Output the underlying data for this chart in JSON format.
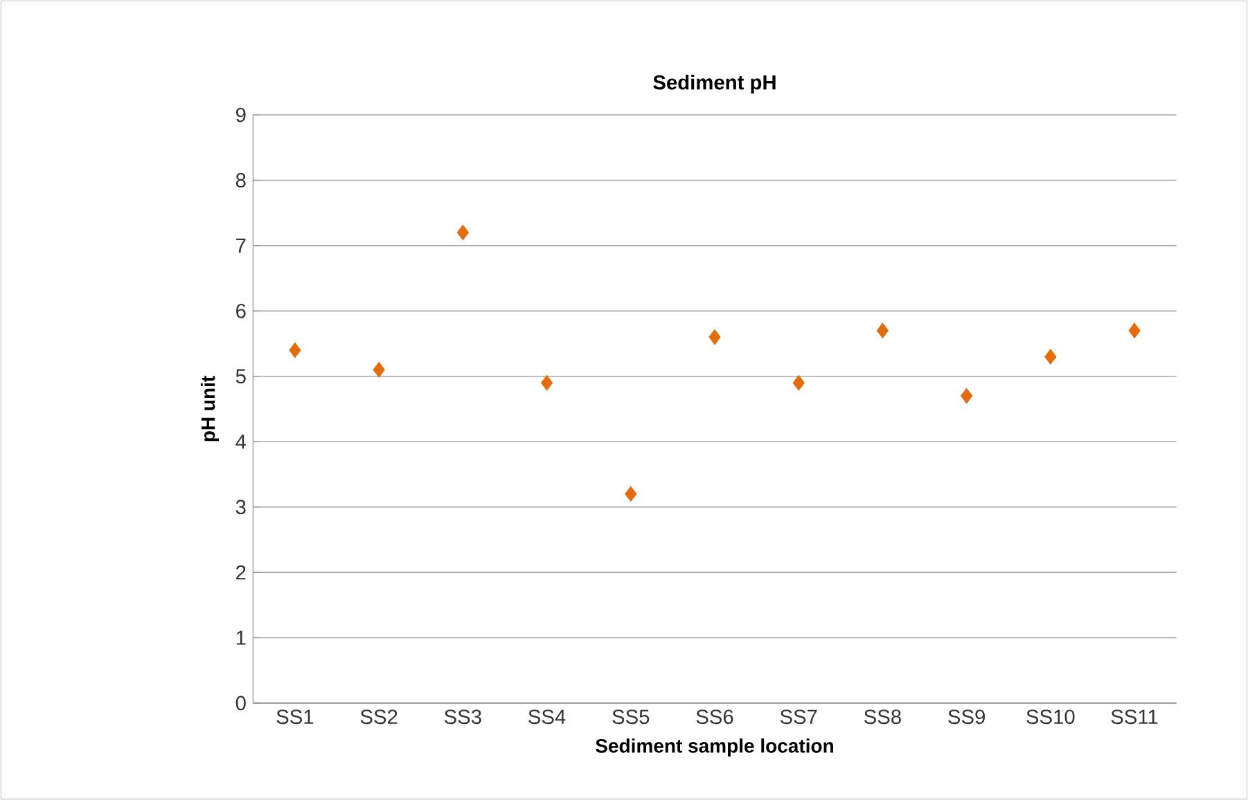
{
  "chart_data": {
    "type": "scatter",
    "title": "Sediment pH",
    "xlabel": "Sediment sample location",
    "ylabel": "pH unit",
    "categories": [
      "SS1",
      "SS2",
      "SS3",
      "SS4",
      "SS5",
      "SS6",
      "SS7",
      "SS8",
      "SS9",
      "SS10",
      "SS11"
    ],
    "series": [
      {
        "color": "#e46c0a",
        "values": [
          5.4,
          5.1,
          7.2,
          4.9,
          3.2,
          5.6,
          4.9,
          5.7,
          4.7,
          5.3,
          5.7
        ]
      }
    ],
    "ylim": [
      0,
      9
    ],
    "yticks": [
      0,
      1,
      2,
      3,
      4,
      5,
      6,
      7,
      8,
      9
    ],
    "grid": "y",
    "marker": "diamond"
  }
}
